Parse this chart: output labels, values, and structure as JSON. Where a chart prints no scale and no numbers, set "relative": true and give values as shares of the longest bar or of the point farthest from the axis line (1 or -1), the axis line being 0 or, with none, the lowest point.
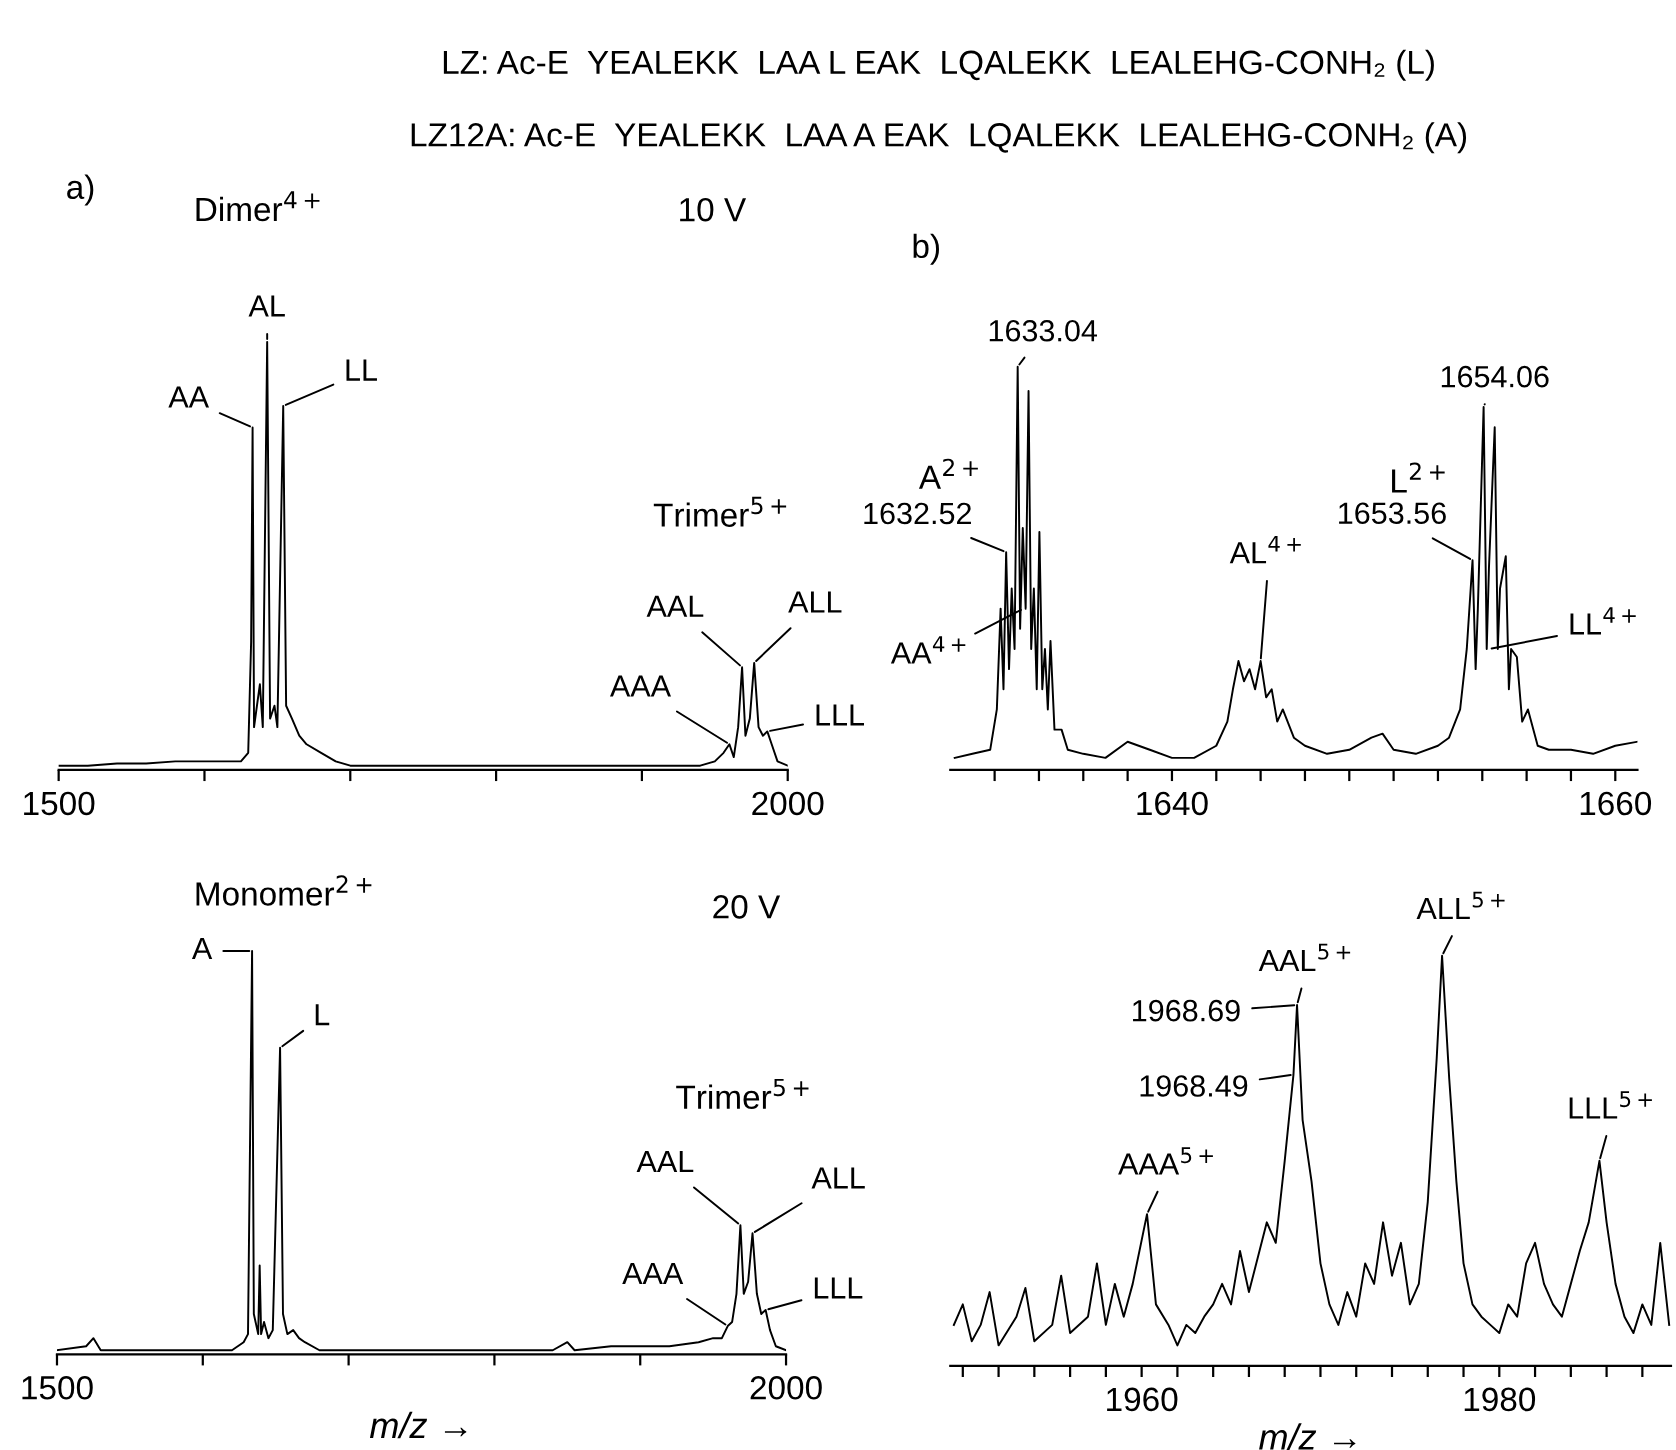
{
  "chart_data": [
    {
      "type": "line",
      "title": "LZ: Ac-E  YEALEKK  LAA L EAK  LQALEKK  LEALEHG-CONH₂ (L)",
      "subtitle": "LZ12A: Ac-E  YEALEKK  LAA A EAK  LQALEKK  LEALEHG-CONH₂ (A)",
      "relative": true,
      "color": "#000000",
      "marker": "none",
      "line_style": "solid",
      "grid": false,
      "legend": false,
      "xlim": [
        1500,
        2000
      ],
      "xticks": [
        1500,
        {
          "value": 1600,
          "label": null
        },
        {
          "value": 1700,
          "label": null
        },
        {
          "value": 1800,
          "label": null
        },
        {
          "value": 1900,
          "label": null
        },
        2000
      ],
      "x": [
        1500,
        1520,
        1540,
        1560,
        1580,
        1600,
        1625,
        1630,
        1632,
        1633,
        1634,
        1636,
        1638,
        1640,
        1643,
        1645,
        1648,
        1650,
        1654,
        1656,
        1660,
        1665,
        1670,
        1680,
        1690,
        1700,
        1750,
        1800,
        1850,
        1900,
        1940,
        1950,
        1956,
        1960,
        1963,
        1966,
        1968.7,
        1971,
        1974,
        1977,
        1980,
        1983,
        1986,
        1989,
        1993,
        2000
      ],
      "values": [
        0.01,
        0.01,
        0.015,
        0.015,
        0.02,
        0.02,
        0.02,
        0.04,
        0.3,
        0.8,
        0.1,
        0.15,
        0.2,
        0.1,
        1.0,
        0.12,
        0.15,
        0.1,
        0.85,
        0.15,
        0.12,
        0.08,
        0.06,
        0.04,
        0.02,
        0.01,
        0.01,
        0.01,
        0.01,
        0.01,
        0.01,
        0.02,
        0.04,
        0.06,
        0.03,
        0.1,
        0.24,
        0.08,
        0.12,
        0.25,
        0.1,
        0.08,
        0.09,
        0.06,
        0.02,
        0.01
      ],
      "annotations": [
        "a)",
        "Dimer$^{4+}$",
        "10 V",
        "Trimer$^{5+}$",
        {
          "text": "AA",
          "x": 1633,
          "y": 0.8
        },
        {
          "text": "AL",
          "x": 1643,
          "y": 1.0
        },
        {
          "text": "LL",
          "x": 1654,
          "y": 0.85
        },
        {
          "text": "AAA",
          "x": 1960,
          "y": 0.06
        },
        {
          "text": "AAL",
          "x": 1968.7,
          "y": 0.24
        },
        {
          "text": "ALL",
          "x": 1977,
          "y": 0.25
        },
        {
          "text": "LLL",
          "x": 1986,
          "y": 0.09
        }
      ]
    },
    {
      "type": "line",
      "relative": true,
      "color": "#000000",
      "marker": "none",
      "line_style": "solid",
      "grid": false,
      "legend": false,
      "xlim": [
        1630,
        1661
      ],
      "xticks": [
        {
          "value": 1632,
          "label": null
        },
        {
          "value": 1634,
          "label": null
        },
        {
          "value": 1636,
          "label": null
        },
        {
          "value": 1638,
          "label": null
        },
        1640,
        {
          "value": 1642,
          "label": null
        },
        {
          "value": 1644,
          "label": null
        },
        {
          "value": 1646,
          "label": null
        },
        {
          "value": 1648,
          "label": null
        },
        {
          "value": 1650,
          "label": null
        },
        {
          "value": 1652,
          "label": null
        },
        {
          "value": 1654,
          "label": null
        },
        {
          "value": 1656,
          "label": null
        },
        {
          "value": 1658,
          "label": null
        },
        1660
      ],
      "x": [
        1630.2,
        1631,
        1631.8,
        1632.1,
        1632.27,
        1632.4,
        1632.52,
        1632.65,
        1632.77,
        1632.9,
        1633.04,
        1633.15,
        1633.27,
        1633.4,
        1633.53,
        1633.65,
        1633.77,
        1633.9,
        1634.02,
        1634.15,
        1634.27,
        1634.4,
        1634.52,
        1634.7,
        1635.02,
        1635.3,
        1636,
        1637,
        1638,
        1639,
        1640,
        1641,
        1642,
        1642.5,
        1642.75,
        1643,
        1643.25,
        1643.5,
        1643.75,
        1644,
        1644.25,
        1644.5,
        1644.75,
        1645,
        1645.5,
        1646,
        1647,
        1648,
        1649,
        1649.5,
        1650,
        1651,
        1652,
        1652.5,
        1653,
        1653.3,
        1653.56,
        1653.7,
        1653.8,
        1654.06,
        1654.2,
        1654.3,
        1654.56,
        1654.7,
        1654.8,
        1655.06,
        1655.2,
        1655.3,
        1655.56,
        1655.8,
        1656.06,
        1656.5,
        1657,
        1658,
        1659,
        1660,
        1661
      ],
      "values": [
        0.03,
        0.04,
        0.05,
        0.15,
        0.4,
        0.2,
        0.54,
        0.25,
        0.45,
        0.3,
        1.0,
        0.35,
        0.6,
        0.4,
        0.94,
        0.3,
        0.45,
        0.2,
        0.59,
        0.2,
        0.3,
        0.15,
        0.32,
        0.1,
        0.1,
        0.05,
        0.04,
        0.03,
        0.07,
        0.05,
        0.03,
        0.03,
        0.06,
        0.12,
        0.2,
        0.27,
        0.22,
        0.25,
        0.2,
        0.27,
        0.18,
        0.2,
        0.12,
        0.15,
        0.08,
        0.06,
        0.04,
        0.05,
        0.08,
        0.09,
        0.05,
        0.04,
        0.06,
        0.08,
        0.15,
        0.3,
        0.52,
        0.25,
        0.4,
        0.9,
        0.3,
        0.5,
        0.85,
        0.3,
        0.45,
        0.53,
        0.2,
        0.3,
        0.28,
        0.12,
        0.15,
        0.06,
        0.05,
        0.05,
        0.04,
        0.06,
        0.07
      ],
      "annotations": [
        "b)",
        "A$^{2+}$",
        "L$^{2+}$",
        {
          "text": "1633.04",
          "x": 1633.04,
          "y": 1.0
        },
        {
          "text": "1632.52",
          "x": 1632.52,
          "y": 0.54
        },
        {
          "text": "AA$^{4+}$",
          "x": 1633.3,
          "y": 0.4
        },
        {
          "text": "AL$^{4+}$",
          "x": 1644,
          "y": 0.27
        },
        {
          "text": "1654.06",
          "x": 1654.06,
          "y": 0.9
        },
        {
          "text": "1653.56",
          "x": 1653.56,
          "y": 0.52
        },
        {
          "text": "LL$^{4+}$",
          "x": 1654.3,
          "y": 0.3
        }
      ]
    },
    {
      "type": "line",
      "relative": true,
      "color": "#000000",
      "marker": "none",
      "line_style": "solid",
      "grid": false,
      "legend": false,
      "xlabel": "m/z →",
      "xlim": [
        1500,
        2000
      ],
      "xticks": [
        1500,
        {
          "value": 1600,
          "label": null
        },
        {
          "value": 1700,
          "label": null
        },
        {
          "value": 1800,
          "label": null
        },
        {
          "value": 1900,
          "label": null
        },
        2000
      ],
      "x": [
        1500,
        1520,
        1525,
        1530,
        1580,
        1620,
        1628,
        1631,
        1633.8,
        1635,
        1638,
        1639,
        1640,
        1642,
        1645,
        1648,
        1653,
        1655,
        1658,
        1662,
        1666,
        1670,
        1680,
        1700,
        1750,
        1800,
        1840,
        1850,
        1855,
        1880,
        1900,
        1920,
        1940,
        1950,
        1956,
        1960,
        1963,
        1966,
        1968.7,
        1971,
        1974,
        1977,
        1980,
        1983,
        1986,
        1989,
        1993,
        2000
      ],
      "values": [
        0.01,
        0.02,
        0.04,
        0.01,
        0.01,
        0.01,
        0.03,
        0.05,
        1.0,
        0.1,
        0.05,
        0.22,
        0.05,
        0.08,
        0.04,
        0.06,
        0.76,
        0.1,
        0.05,
        0.06,
        0.04,
        0.03,
        0.01,
        0.01,
        0.01,
        0.01,
        0.01,
        0.03,
        0.01,
        0.02,
        0.02,
        0.02,
        0.03,
        0.04,
        0.04,
        0.07,
        0.08,
        0.15,
        0.32,
        0.15,
        0.18,
        0.3,
        0.15,
        0.1,
        0.11,
        0.06,
        0.02,
        0.01
      ],
      "annotations": [
        "Monomer$^{2+}$",
        "20 V",
        "Trimer$^{5+}$",
        {
          "text": "A",
          "x": 1633.8,
          "y": 1.0
        },
        {
          "text": "L",
          "x": 1653,
          "y": 0.76
        },
        {
          "text": "AAA",
          "x": 1960,
          "y": 0.07
        },
        {
          "text": "AAL",
          "x": 1968.7,
          "y": 0.32
        },
        {
          "text": "ALL",
          "x": 1977,
          "y": 0.3
        },
        {
          "text": "LLL",
          "x": 1986,
          "y": 0.11
        }
      ]
    },
    {
      "type": "line",
      "relative": true,
      "color": "#000000",
      "marker": "none",
      "line_style": "solid",
      "grid": false,
      "legend": false,
      "xlabel": "m/z →",
      "xlim": [
        1949.3,
        1989.6
      ],
      "xticks": [
        {
          "value": 1950,
          "label": null
        },
        {
          "value": 1952,
          "label": null
        },
        {
          "value": 1954,
          "label": null
        },
        {
          "value": 1956,
          "label": null
        },
        {
          "value": 1958,
          "label": null
        },
        1960,
        {
          "value": 1962,
          "label": null
        },
        {
          "value": 1964,
          "label": null
        },
        {
          "value": 1966,
          "label": null
        },
        {
          "value": 1968,
          "label": null
        },
        {
          "value": 1970,
          "label": null
        },
        {
          "value": 1972,
          "label": null
        },
        {
          "value": 1974,
          "label": null
        },
        {
          "value": 1976,
          "label": null
        },
        {
          "value": 1978,
          "label": null
        },
        1980,
        {
          "value": 1982,
          "label": null
        },
        {
          "value": 1984,
          "label": null
        },
        {
          "value": 1986,
          "label": null
        },
        {
          "value": 1988,
          "label": null
        }
      ],
      "x": [
        1949.5,
        1950,
        1950.5,
        1951,
        1951.5,
        1952,
        1953,
        1953.5,
        1954,
        1955,
        1955.5,
        1956,
        1957,
        1957.5,
        1958,
        1958.5,
        1959,
        1959.5,
        1960.3,
        1960.8,
        1961.5,
        1962,
        1962.5,
        1963,
        1963.5,
        1964,
        1964.5,
        1965,
        1965.5,
        1966,
        1967,
        1967.5,
        1968,
        1968.49,
        1968.69,
        1969,
        1969.5,
        1970,
        1970.5,
        1971,
        1971.5,
        1972,
        1972.5,
        1973,
        1973.5,
        1974,
        1974.5,
        1975,
        1975.5,
        1976,
        1976.5,
        1976.8,
        1977.2,
        1977.6,
        1978,
        1978.5,
        1979,
        1979.5,
        1980,
        1980.5,
        1981,
        1981.5,
        1982,
        1982.5,
        1983,
        1983.5,
        1984,
        1984.5,
        1985,
        1985.6,
        1986,
        1986.5,
        1987,
        1987.5,
        1988,
        1988.5,
        1989,
        1989.5
      ],
      "values": [
        0.1,
        0.15,
        0.06,
        0.1,
        0.18,
        0.05,
        0.12,
        0.19,
        0.06,
        0.1,
        0.22,
        0.08,
        0.12,
        0.25,
        0.1,
        0.2,
        0.12,
        0.2,
        0.37,
        0.15,
        0.1,
        0.05,
        0.1,
        0.08,
        0.12,
        0.15,
        0.2,
        0.15,
        0.28,
        0.18,
        0.35,
        0.3,
        0.5,
        0.71,
        0.88,
        0.6,
        0.45,
        0.25,
        0.15,
        0.1,
        0.18,
        0.12,
        0.25,
        0.2,
        0.35,
        0.22,
        0.3,
        0.15,
        0.2,
        0.4,
        0.75,
        1.0,
        0.7,
        0.45,
        0.25,
        0.15,
        0.12,
        0.1,
        0.08,
        0.15,
        0.12,
        0.25,
        0.3,
        0.2,
        0.15,
        0.12,
        0.2,
        0.28,
        0.35,
        0.5,
        0.35,
        0.2,
        0.12,
        0.08,
        0.15,
        0.1,
        0.3,
        0.1
      ],
      "annotations": [
        {
          "text": "AAA$^{5+}$",
          "x": 1960.3,
          "y": 0.37
        },
        {
          "text": "AAL$^{5+}$",
          "x": 1968.69,
          "y": 0.88
        },
        {
          "text": "1968.69",
          "x": 1968.69,
          "y": 0.88
        },
        {
          "text": "1968.49",
          "x": 1968.49,
          "y": 0.71
        },
        {
          "text": "ALL$^{5+}$",
          "x": 1976.8,
          "y": 1.0
        },
        {
          "text": "LLL$^{5+}$",
          "x": 1985.6,
          "y": 0.5
        }
      ]
    }
  ]
}
